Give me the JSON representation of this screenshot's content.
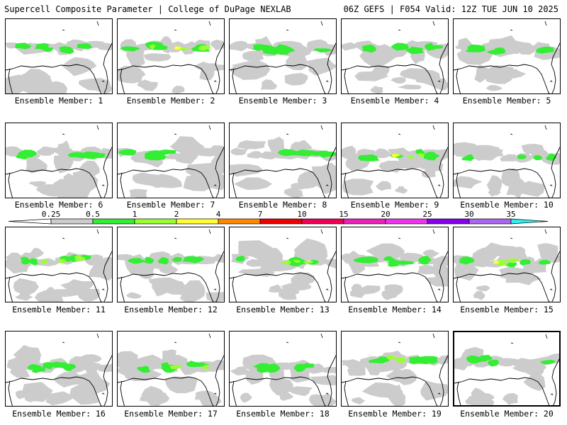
{
  "header": {
    "left": "Supercell Composite Parameter | College of DuPage NEXLAB",
    "right": "06Z GEFS | F054 Valid: 12Z TUE JUN 10 2025"
  },
  "colors": {
    "gray": "#cccccc",
    "green": "#33ee33",
    "lime": "#99ff33",
    "yellow": "#ffff33",
    "orange": "#ff8800",
    "red": "#ee0000",
    "crimson": "#ee0055",
    "magenta": "#ee22bb",
    "violet": "#ee33ee",
    "purple": "#8800ee",
    "lavender": "#aa66ee",
    "cyan": "#33eeee"
  },
  "legend": {
    "ticks": [
      "0.25",
      "0.5",
      "1",
      "2",
      "4",
      "7",
      "10",
      "15",
      "20",
      "25",
      "30",
      "35"
    ],
    "colors": [
      "#cccccc",
      "#33ee33",
      "#99ff33",
      "#ffff33",
      "#ff8800",
      "#ee0000",
      "#ee0055",
      "#ee22bb",
      "#ee33ee",
      "#8800ee",
      "#aa66ee",
      "#33eeee"
    ]
  },
  "members": [
    {
      "label": "Ensemble Member: 1",
      "level": 2
    },
    {
      "label": "Ensemble Member: 2",
      "level": 4
    },
    {
      "label": "Ensemble Member: 3",
      "level": 2
    },
    {
      "label": "Ensemble Member: 4",
      "level": 2
    },
    {
      "label": "Ensemble Member: 5",
      "level": 2
    },
    {
      "label": "Ensemble Member: 6",
      "level": 2
    },
    {
      "label": "Ensemble Member: 7",
      "level": 2
    },
    {
      "label": "Ensemble Member: 8",
      "level": 2
    },
    {
      "label": "Ensemble Member: 9",
      "level": 4
    },
    {
      "label": "Ensemble Member: 10",
      "level": 2
    },
    {
      "label": "Ensemble Member: 11",
      "level": 3
    },
    {
      "label": "Ensemble Member: 12",
      "level": 2
    },
    {
      "label": "Ensemble Member: 13",
      "level": 3
    },
    {
      "label": "Ensemble Member: 14",
      "level": 2
    },
    {
      "label": "Ensemble Member: 15",
      "level": 4
    },
    {
      "label": "Ensemble Member: 16",
      "level": 2
    },
    {
      "label": "Ensemble Member: 17",
      "level": 3
    },
    {
      "label": "Ensemble Member: 18",
      "level": 2
    },
    {
      "label": "Ensemble Member: 19",
      "level": 3
    },
    {
      "label": "Ensemble Member: 20",
      "level": 2
    }
  ]
}
